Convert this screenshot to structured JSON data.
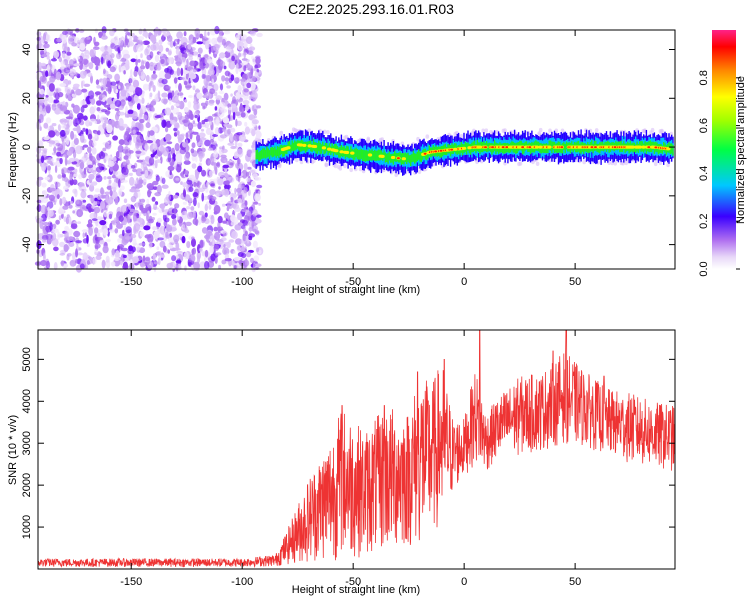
{
  "figure_title": "C2E2.2025.293.16.01.R03",
  "colors": {
    "snr_line": "#ee3333",
    "noise": "#8a2be2"
  },
  "chart_data": [
    {
      "type": "heatmap",
      "name": "spectrogram",
      "title": "C2E2.2025.293.16.01.R03",
      "xlabel": "Height of straight line (km)",
      "ylabel": "Frequency (Hz)",
      "xlim": [
        -192,
        95
      ],
      "ylim": [
        -50,
        48
      ],
      "xticks": [
        -150,
        -100,
        -50,
        0,
        50
      ],
      "yticks": [
        -40,
        -20,
        0,
        20,
        40
      ],
      "noise_region": {
        "x": [
          -192,
          -92
        ],
        "y": [
          -50,
          48
        ]
      },
      "signal_band_center": [
        {
          "x": -95,
          "y": -4
        },
        {
          "x": -85,
          "y": -2
        },
        {
          "x": -75,
          "y": 1
        },
        {
          "x": -65,
          "y": 0
        },
        {
          "x": -55,
          "y": -2
        },
        {
          "x": -45,
          "y": -3
        },
        {
          "x": -35,
          "y": -4
        },
        {
          "x": -25,
          "y": -5
        },
        {
          "x": -15,
          "y": -2
        },
        {
          "x": -5,
          "y": -1
        },
        {
          "x": 5,
          "y": 0
        },
        {
          "x": 15,
          "y": 0
        },
        {
          "x": 25,
          "y": 0
        },
        {
          "x": 35,
          "y": 0
        },
        {
          "x": 45,
          "y": 0
        },
        {
          "x": 55,
          "y": 0
        },
        {
          "x": 65,
          "y": 0
        },
        {
          "x": 75,
          "y": 0
        },
        {
          "x": 85,
          "y": 0
        },
        {
          "x": 95,
          "y": -1
        }
      ],
      "colorbar": {
        "label": "Normalized spectral amplitude",
        "range": [
          0,
          1
        ],
        "ticks": [
          "0.0",
          "0.2",
          "0.4",
          "0.6",
          "0.8"
        ]
      }
    },
    {
      "type": "line",
      "name": "snr",
      "xlabel": "Height of straight line (km)",
      "ylabel": "SNR (10 * v/v)",
      "xlim": [
        -192,
        95
      ],
      "ylim": [
        0,
        5700
      ],
      "xticks": [
        -150,
        -100,
        -50,
        0,
        50
      ],
      "yticks": [
        1000,
        2000,
        3000,
        4000,
        5000
      ],
      "envelope": [
        {
          "x": -192,
          "low": 50,
          "high": 250
        },
        {
          "x": -100,
          "low": 50,
          "high": 250
        },
        {
          "x": -85,
          "low": 60,
          "high": 350
        },
        {
          "x": -80,
          "low": 100,
          "high": 900
        },
        {
          "x": -70,
          "low": 150,
          "high": 2200
        },
        {
          "x": -60,
          "low": 200,
          "high": 3200
        },
        {
          "x": -55,
          "low": 200,
          "high": 3900
        },
        {
          "x": -45,
          "low": 300,
          "high": 3300
        },
        {
          "x": -35,
          "low": 400,
          "high": 3900
        },
        {
          "x": -25,
          "low": 500,
          "high": 3800
        },
        {
          "x": -20,
          "low": 500,
          "high": 4700
        },
        {
          "x": -15,
          "low": 800,
          "high": 4400
        },
        {
          "x": -10,
          "low": 1000,
          "high": 5000
        },
        {
          "x": -5,
          "low": 1800,
          "high": 3600
        },
        {
          "x": 0,
          "low": 2200,
          "high": 3600
        },
        {
          "x": 5,
          "low": 2500,
          "high": 4800
        },
        {
          "x": 10,
          "low": 2300,
          "high": 3700
        },
        {
          "x": 15,
          "low": 2600,
          "high": 4100
        },
        {
          "x": 25,
          "low": 2700,
          "high": 4600
        },
        {
          "x": 35,
          "low": 2800,
          "high": 4700
        },
        {
          "x": 45,
          "low": 3000,
          "high": 5200
        },
        {
          "x": 55,
          "low": 2900,
          "high": 4700
        },
        {
          "x": 65,
          "low": 2700,
          "high": 4300
        },
        {
          "x": 75,
          "low": 2500,
          "high": 4200
        },
        {
          "x": 85,
          "low": 2400,
          "high": 4000
        },
        {
          "x": 95,
          "low": 2300,
          "high": 3900
        }
      ],
      "peaks": [
        {
          "x": -55,
          "y": 3900
        },
        {
          "x": -36,
          "y": 3900
        },
        {
          "x": -21,
          "y": 4700
        },
        {
          "x": -9,
          "y": 5000
        },
        {
          "x": 7,
          "y": 5700
        },
        {
          "x": 40,
          "y": 5200
        },
        {
          "x": 46,
          "y": 5700
        },
        {
          "x": 63,
          "y": 4600
        }
      ]
    }
  ]
}
